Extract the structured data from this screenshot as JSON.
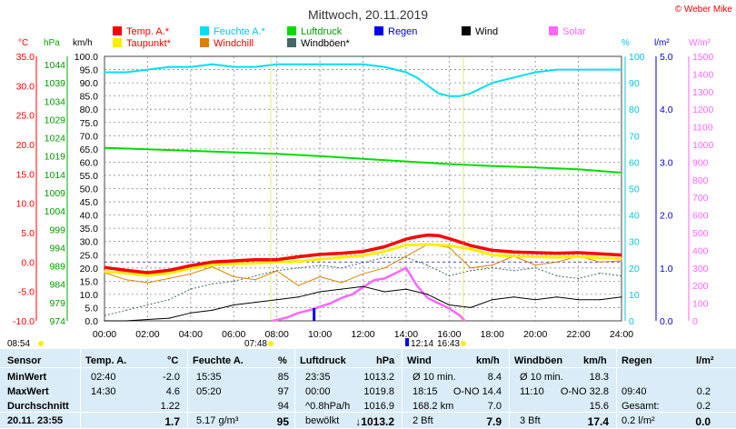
{
  "header": {
    "title": "Mittwoch, 20.11.2019",
    "copyright": "© Weber Mike"
  },
  "axis_units": {
    "temp": "°C",
    "hpa": "hPa",
    "kmh": "km/h",
    "percent": "%",
    "rain": "l/m²",
    "solar": "W/m²"
  },
  "legend": [
    {
      "label": "Temp. A.*",
      "color": "#ff0000",
      "text_color": "#ff0000"
    },
    {
      "label": "Feuchte A.*",
      "color": "#00e0f0",
      "text_color": "#00c8e0"
    },
    {
      "label": "Luftdruck",
      "color": "#00dd00",
      "text_color": "#009900"
    },
    {
      "label": "Regen",
      "color": "#0000ee",
      "text_color": "#0000cc"
    },
    {
      "label": "Wind",
      "color": "#000000",
      "text_color": "#000000"
    },
    {
      "label": "Solar",
      "color": "#ff66ff",
      "text_color": "#ff66ff"
    },
    {
      "label": "Taupunkt*",
      "color": "#ffee00",
      "text_color": "#ff0000"
    },
    {
      "label": "Windchill",
      "color": "#e08000",
      "text_color": "#ff0000"
    },
    {
      "label": "Windböen*",
      "color": "#446666",
      "text_color": "#000000"
    }
  ],
  "axis_ticks": {
    "temp": [
      "35.0",
      "30.0",
      "25.0",
      "20.0",
      "15.0",
      "10.0",
      "5.0",
      "0.0",
      "-5.0",
      "-10.0"
    ],
    "hpa": [
      "1044",
      "1039",
      "1034",
      "1029",
      "1024",
      "1019",
      "1014",
      "1009",
      "1004",
      "999",
      "994",
      "989",
      "984",
      "979",
      "974"
    ],
    "kmh": [
      "100.0",
      "95.0",
      "90.0",
      "85.0",
      "80.0",
      "75.0",
      "70.0",
      "65.0",
      "60.0",
      "55.0",
      "50.0",
      "45.0",
      "40.0",
      "35.0",
      "30.0",
      "25.0",
      "20.0",
      "15.0",
      "10.0",
      "5.0",
      "0.0"
    ],
    "percent": [
      "100",
      "90",
      "80",
      "70",
      "60",
      "50",
      "40",
      "30",
      "20",
      "10",
      "0"
    ],
    "rain": [
      "5.0",
      "4.0",
      "3.0",
      "2.0",
      "1.0",
      "0.0"
    ],
    "solar": [
      "1500",
      "1400",
      "1300",
      "1200",
      "1100",
      "1000",
      "900",
      "800",
      "700",
      "600",
      "500",
      "400",
      "300",
      "200",
      "100",
      "0"
    ],
    "time": [
      "00:00",
      "02:00",
      "04:00",
      "06:00",
      "08:00",
      "10:00",
      "12:00",
      "14:00",
      "16:00",
      "18:00",
      "20:00",
      "22:00",
      "24:00"
    ]
  },
  "sun_events": {
    "sunset_prev": "08:54",
    "sunrise": "07:48",
    "solar_noon": "12:14",
    "sunset": "16:43"
  },
  "chart_data": {
    "type": "line",
    "title": "Mittwoch, 20.11.2019",
    "xlabel": "",
    "x_range_hours": [
      0,
      24
    ],
    "axes": {
      "temp_c": [
        -10,
        35
      ],
      "pressure_hpa": [
        974,
        1044
      ],
      "wind_kmh": [
        0,
        100
      ],
      "humidity_percent": [
        0,
        100
      ],
      "rain_l_m2": [
        0,
        5
      ],
      "solar_w_m2": [
        0,
        1500
      ]
    },
    "series": [
      {
        "name": "Temp. A.*",
        "axis": "temp_c",
        "x": [
          0,
          1,
          2,
          3,
          4,
          5,
          6,
          7,
          8,
          9,
          10,
          11,
          12,
          13,
          14,
          14.5,
          15,
          15.5,
          16,
          16.5,
          17,
          18,
          19,
          20,
          21,
          22,
          23,
          24
        ],
        "values": [
          -0.9,
          -1.4,
          -1.8,
          -1.4,
          -0.6,
          0.0,
          0.2,
          0.4,
          0.4,
          0.9,
          1.3,
          1.5,
          1.8,
          2.6,
          3.9,
          4.3,
          4.6,
          4.5,
          4.0,
          3.4,
          2.8,
          2.0,
          1.7,
          1.6,
          1.5,
          1.6,
          1.4,
          1.2
        ]
      },
      {
        "name": "Taupunkt*",
        "axis": "temp_c",
        "x": [
          0,
          1,
          2,
          3,
          4,
          5,
          6,
          7,
          8,
          9,
          10,
          11,
          12,
          13,
          14,
          15,
          16,
          17,
          18,
          19,
          20,
          21,
          22,
          23,
          24
        ],
        "values": [
          -1.6,
          -1.9,
          -2.3,
          -1.9,
          -1.1,
          -0.5,
          -0.3,
          -0.2,
          0.0,
          0.1,
          0.5,
          0.8,
          1.1,
          1.8,
          2.9,
          3.0,
          2.8,
          2.2,
          1.2,
          1.0,
          0.9,
          0.8,
          0.9,
          0.7,
          0.6
        ]
      },
      {
        "name": "Windchill",
        "axis": "temp_c",
        "x": [
          0,
          1,
          2,
          3,
          4,
          5,
          6,
          7,
          8,
          9,
          10,
          11,
          12,
          13,
          14,
          15,
          16,
          17,
          18,
          19,
          20,
          21,
          22,
          23,
          24
        ],
        "values": [
          -1.8,
          -3.0,
          -3.5,
          -2.8,
          -2.0,
          -0.8,
          -2.5,
          -3.0,
          -1.5,
          -4.0,
          -2.5,
          -3.5,
          -2.0,
          -1.0,
          1.0,
          3.0,
          2.5,
          -1.0,
          -0.5,
          1.0,
          -0.5,
          0.0,
          1.0,
          0.0,
          0.2
        ]
      },
      {
        "name": "Feuchte A.*",
        "axis": "humidity_percent",
        "x": [
          0,
          1,
          2,
          3,
          4,
          5,
          6,
          7,
          8,
          9,
          10,
          11,
          12,
          13,
          14,
          14.5,
          15,
          15.5,
          16,
          16.5,
          17,
          18,
          19,
          20,
          21,
          22,
          23,
          24
        ],
        "values": [
          94,
          94,
          95,
          96,
          96,
          97,
          96,
          96,
          97,
          97,
          97,
          97,
          97,
          96,
          94,
          92,
          89,
          86,
          85,
          85,
          86,
          90,
          92,
          94,
          95,
          95,
          95,
          95
        ]
      },
      {
        "name": "Luftdruck",
        "axis": "pressure_hpa",
        "x": [
          0,
          2,
          4,
          6,
          8,
          10,
          12,
          14,
          16,
          18,
          20,
          22,
          24
        ],
        "values": [
          1019.8,
          1019.4,
          1019.0,
          1018.6,
          1018.2,
          1017.6,
          1016.9,
          1016.2,
          1015.5,
          1015.0,
          1014.6,
          1014.1,
          1013.2
        ]
      },
      {
        "name": "Wind",
        "axis": "wind_kmh",
        "x": [
          0,
          1,
          2,
          3,
          4,
          5,
          6,
          7,
          8,
          9,
          10,
          11,
          12,
          13,
          14,
          15,
          16,
          17,
          18,
          19,
          20,
          21,
          22,
          23,
          24
        ],
        "values": [
          0,
          0,
          0.5,
          1,
          3,
          4,
          6,
          7,
          8,
          9,
          11,
          12,
          13,
          11,
          12,
          10,
          6,
          5,
          8,
          9,
          8,
          9,
          8,
          8,
          9
        ]
      },
      {
        "name": "Windböen*",
        "axis": "wind_kmh",
        "x": [
          0,
          1,
          2,
          3,
          4,
          5,
          6,
          7,
          8,
          9,
          10,
          11,
          12,
          13,
          14,
          15,
          16,
          17,
          18,
          19,
          20,
          21,
          22,
          23,
          24
        ],
        "values": [
          2,
          4,
          6,
          8,
          12,
          14,
          15,
          17,
          19,
          20,
          21,
          20,
          22,
          24,
          24,
          21,
          17,
          19,
          20,
          19,
          20,
          17,
          16,
          18,
          17
        ]
      },
      {
        "name": "Solar",
        "axis": "solar_w_m2",
        "x": [
          7.8,
          8,
          8.5,
          9,
          9.5,
          10,
          10.5,
          11,
          11.5,
          12,
          12.5,
          13,
          13.5,
          14,
          14.5,
          15,
          15.5,
          16,
          16.5,
          16.72
        ],
        "values": [
          0,
          5,
          20,
          45,
          60,
          80,
          100,
          130,
          150,
          190,
          230,
          240,
          270,
          300,
          200,
          130,
          100,
          70,
          30,
          0
        ]
      },
      {
        "name": "Regen",
        "axis": "rain_l_m2",
        "x": [
          9.73
        ],
        "values": [
          0.2
        ]
      }
    ]
  },
  "table": {
    "headers": [
      "Sensor",
      "Temp. A.",
      "°C",
      "Feuchte A.",
      "%",
      "Luftdruck",
      "hPa",
      "Wind",
      "km/h",
      "Windböen",
      "km/h",
      "Regen",
      "l/m²"
    ],
    "rows": [
      {
        "label": "MinWert",
        "cells": [
          "02:40",
          "-2.0",
          "15:35",
          "85",
          "23:35",
          "1013.2",
          "Ø 10 min.",
          "8.4",
          "Ø 10 min.",
          "18.3",
          "",
          "",
          ""
        ]
      },
      {
        "label": "MaxWert",
        "cells": [
          "14:30",
          "4.6",
          "05:20",
          "97",
          "00:00",
          "1019.8",
          "18:15",
          "O-NO 14.4",
          "11:10",
          "O-NO 32.8",
          "09:40",
          "0.2",
          ""
        ]
      },
      {
        "label": "Durchschnitt",
        "cells": [
          "",
          "1.22",
          "",
          "94",
          "^0.8hPa/h",
          "1016.9",
          "168.2 km",
          "7.0",
          "",
          "15.6",
          "Gesamt:",
          "0.2",
          ""
        ]
      },
      {
        "label": "20.11. 23:55",
        "cells": [
          "",
          "1.7",
          "5.17 g/m³",
          "95",
          "bewölkt",
          "↓1013.2",
          "2 Bft",
          "7.9",
          "3 Bft",
          "17.4",
          "0.2 l/m²",
          "0.0",
          ""
        ]
      }
    ]
  }
}
